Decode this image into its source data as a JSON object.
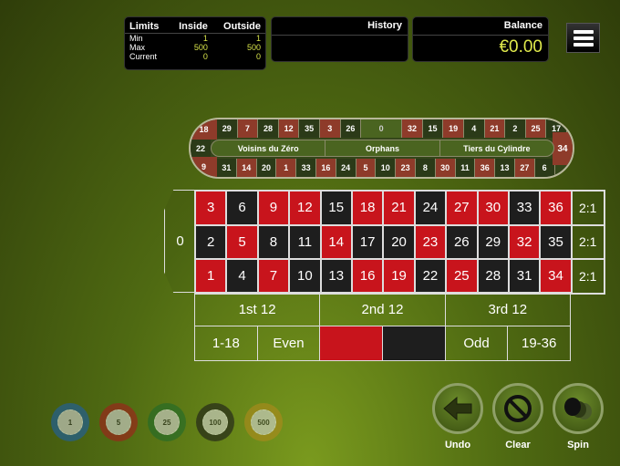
{
  "limits": {
    "title": "Limits",
    "inside": "Inside",
    "outside": "Outside",
    "rows": [
      {
        "label": "Min",
        "inside": "1",
        "outside": "1"
      },
      {
        "label": "Max",
        "inside": "500",
        "outside": "500"
      },
      {
        "label": "Current",
        "inside": "0",
        "outside": "0"
      }
    ]
  },
  "history": {
    "title": "History"
  },
  "balance": {
    "title": "Balance",
    "value": "€0.00"
  },
  "racetrack": {
    "top": [
      {
        "n": "29",
        "c": "b"
      },
      {
        "n": "7",
        "c": "r"
      },
      {
        "n": "28",
        "c": "b"
      },
      {
        "n": "12",
        "c": "r"
      },
      {
        "n": "35",
        "c": "b"
      },
      {
        "n": "3",
        "c": "r"
      },
      {
        "n": "26",
        "c": "b"
      },
      {
        "n": "0",
        "c": "g"
      },
      {
        "n": "32",
        "c": "r"
      },
      {
        "n": "15",
        "c": "b"
      },
      {
        "n": "19",
        "c": "r"
      },
      {
        "n": "4",
        "c": "b"
      },
      {
        "n": "21",
        "c": "r"
      },
      {
        "n": "2",
        "c": "b"
      },
      {
        "n": "25",
        "c": "r"
      },
      {
        "n": "17",
        "c": "b"
      }
    ],
    "bottom": [
      {
        "n": "31",
        "c": "b"
      },
      {
        "n": "14",
        "c": "r"
      },
      {
        "n": "20",
        "c": "b"
      },
      {
        "n": "1",
        "c": "r"
      },
      {
        "n": "33",
        "c": "b"
      },
      {
        "n": "16",
        "c": "r"
      },
      {
        "n": "24",
        "c": "b"
      },
      {
        "n": "5",
        "c": "r"
      },
      {
        "n": "10",
        "c": "b"
      },
      {
        "n": "23",
        "c": "r"
      },
      {
        "n": "8",
        "c": "b"
      },
      {
        "n": "30",
        "c": "r"
      },
      {
        "n": "11",
        "c": "b"
      },
      {
        "n": "36",
        "c": "r"
      },
      {
        "n": "13",
        "c": "b"
      },
      {
        "n": "27",
        "c": "r"
      },
      {
        "n": "6",
        "c": "b"
      }
    ],
    "left": [
      "18",
      "22",
      "9"
    ],
    "right": "34",
    "sections": [
      "Voisins du Zéro",
      "Orphans",
      "Tiers du Cylindre"
    ]
  },
  "table": {
    "zero": "0",
    "rows": [
      [
        {
          "n": "3",
          "c": "r"
        },
        {
          "n": "6",
          "c": "b"
        },
        {
          "n": "9",
          "c": "r"
        },
        {
          "n": "12",
          "c": "r"
        },
        {
          "n": "15",
          "c": "b"
        },
        {
          "n": "18",
          "c": "r"
        },
        {
          "n": "21",
          "c": "r"
        },
        {
          "n": "24",
          "c": "b"
        },
        {
          "n": "27",
          "c": "r"
        },
        {
          "n": "30",
          "c": "r"
        },
        {
          "n": "33",
          "c": "b"
        },
        {
          "n": "36",
          "c": "r"
        },
        {
          "n": "2:1",
          "c": "o"
        }
      ],
      [
        {
          "n": "2",
          "c": "b"
        },
        {
          "n": "5",
          "c": "r"
        },
        {
          "n": "8",
          "c": "b"
        },
        {
          "n": "11",
          "c": "b"
        },
        {
          "n": "14",
          "c": "r"
        },
        {
          "n": "17",
          "c": "b"
        },
        {
          "n": "20",
          "c": "b"
        },
        {
          "n": "23",
          "c": "r"
        },
        {
          "n": "26",
          "c": "b"
        },
        {
          "n": "29",
          "c": "b"
        },
        {
          "n": "32",
          "c": "r"
        },
        {
          "n": "35",
          "c": "b"
        },
        {
          "n": "2:1",
          "c": "o"
        }
      ],
      [
        {
          "n": "1",
          "c": "r"
        },
        {
          "n": "4",
          "c": "b"
        },
        {
          "n": "7",
          "c": "r"
        },
        {
          "n": "10",
          "c": "b"
        },
        {
          "n": "13",
          "c": "b"
        },
        {
          "n": "16",
          "c": "r"
        },
        {
          "n": "19",
          "c": "r"
        },
        {
          "n": "22",
          "c": "b"
        },
        {
          "n": "25",
          "c": "r"
        },
        {
          "n": "28",
          "c": "b"
        },
        {
          "n": "31",
          "c": "b"
        },
        {
          "n": "34",
          "c": "r"
        },
        {
          "n": "2:1",
          "c": "o"
        }
      ]
    ],
    "dozens": [
      "1st 12",
      "2nd 12",
      "3rd 12"
    ],
    "outside": [
      "1-18",
      "Even",
      "",
      "",
      "Odd",
      "19-36"
    ]
  },
  "chips": [
    {
      "v": "1",
      "color": "#1d5fa8"
    },
    {
      "v": "5",
      "color": "#a51c1c"
    },
    {
      "v": "25",
      "color": "#1f6a2a"
    },
    {
      "v": "100",
      "color": "#1a1a1a"
    },
    {
      "v": "500",
      "color": "#b08a1c"
    }
  ],
  "actions": {
    "undo": "Undo",
    "clear": "Clear",
    "spin": "Spin"
  }
}
